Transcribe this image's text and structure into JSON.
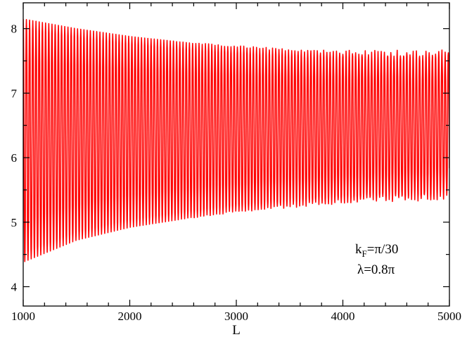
{
  "chart_data": {
    "type": "line",
    "title": "",
    "xlabel": "L",
    "ylabel": "",
    "xlim": [
      1000,
      5000
    ],
    "ylim": [
      3.7,
      8.4
    ],
    "x_ticks": [
      1000,
      2000,
      3000,
      4000,
      5000
    ],
    "y_ticks": [
      4,
      5,
      6,
      7,
      8
    ],
    "x_tick_labels": [
      "1000",
      "2000",
      "3000",
      "4000",
      "5000"
    ],
    "y_tick_labels": [
      "4",
      "5",
      "6",
      "7",
      "8"
    ],
    "grid": false,
    "legend": "none",
    "annotations": {
      "kf_main": "k",
      "kf_sub": "F",
      "kf_rest": "=π/30",
      "lambda": "λ=0.8π"
    },
    "series": [
      {
        "color": "#ff0000",
        "description_envelope": {
          "x": [
            1000,
            1500,
            2000,
            2500,
            3000,
            3500,
            4000,
            4500,
            5000
          ],
          "upper": [
            8.15,
            8.0,
            7.88,
            7.79,
            7.72,
            7.67,
            7.63,
            7.62,
            7.62
          ],
          "lower": [
            4.38,
            4.72,
            4.92,
            5.05,
            5.17,
            5.25,
            5.32,
            5.37,
            5.4
          ]
        },
        "oscillation_period": 30
      }
    ]
  }
}
